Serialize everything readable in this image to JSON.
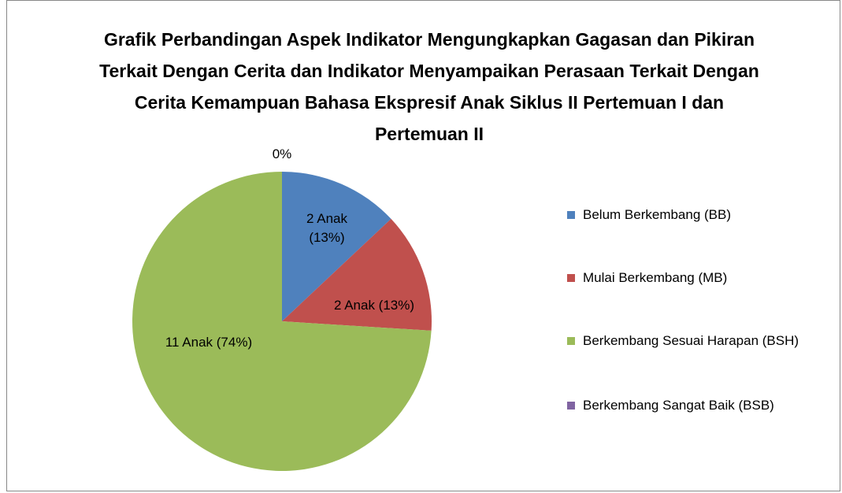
{
  "chart_data": {
    "type": "pie",
    "title": "Grafik Perbandingan Aspek Indikator Mengungkapkan Gagasan dan Pikiran Terkait Dengan Cerita dan Indikator Menyampaikan Perasaan Terkait Dengan Cerita Kemampuan Bahasa Ekspresif Anak Siklus II Pertemuan I dan Pertemuan II",
    "categories": [
      "Belum Berkembang (BB)",
      "Mulai Berkembang (MB)",
      "Berkembang Sesuai Harapan (BSH)",
      "Berkembang Sangat Baik (BSB)"
    ],
    "values": [
      13,
      13,
      74,
      0
    ],
    "value_labels": [
      "2 Anak (13%)",
      "2 Anak (13%)",
      "11 Anak (74%)",
      "0%"
    ],
    "colors": [
      "#4f81bd",
      "#c0504d",
      "#9bbb59",
      "#8064a2"
    ],
    "legend": "right"
  }
}
